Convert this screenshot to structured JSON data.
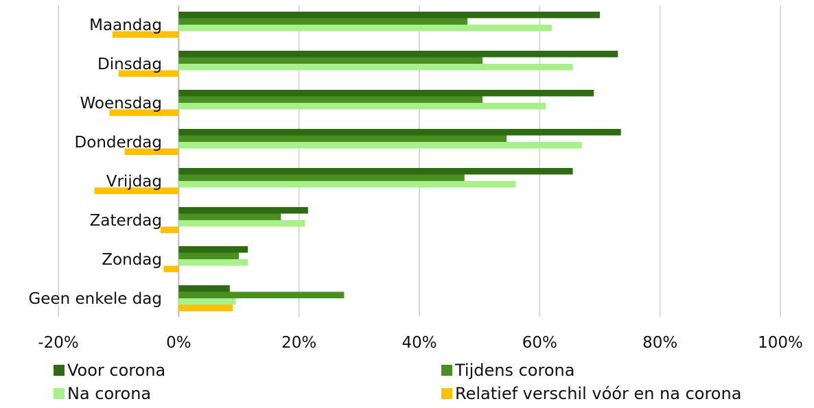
{
  "chart_data": {
    "type": "bar",
    "orientation": "horizontal",
    "title_partial": "... (... ...) ... (...)",
    "categories": [
      "Maandag",
      "Dinsdag",
      "Woensdag",
      "Donderdag",
      "Vrijdag",
      "Zaterdag",
      "Zondag",
      "Geen enkele dag"
    ],
    "series": [
      {
        "name": "Voor corona",
        "color": "#2e6b12",
        "values": [
          70,
          73,
          69,
          73.5,
          65.5,
          21.5,
          11.5,
          8.5
        ]
      },
      {
        "name": "Tijdens corona",
        "color": "#4a8f22",
        "values": [
          48,
          50.5,
          50.5,
          54.5,
          47.5,
          17,
          10,
          27.5
        ]
      },
      {
        "name": "Na corona",
        "color": "#a8f08a",
        "values": [
          62,
          65.5,
          61,
          67,
          56,
          21,
          11.5,
          9.5
        ]
      },
      {
        "name": "Relatief verschil vóór en na corona",
        "color": "#ffc000",
        "values": [
          -11,
          -10,
          -11.5,
          -9,
          -14,
          -3,
          -2.5,
          9
        ]
      }
    ],
    "xlim": [
      -20,
      100
    ],
    "xticks": [
      "-20%",
      "0%",
      "20%",
      "40%",
      "60%",
      "80%",
      "100%"
    ],
    "grid": true,
    "legend_position": "bottom"
  }
}
